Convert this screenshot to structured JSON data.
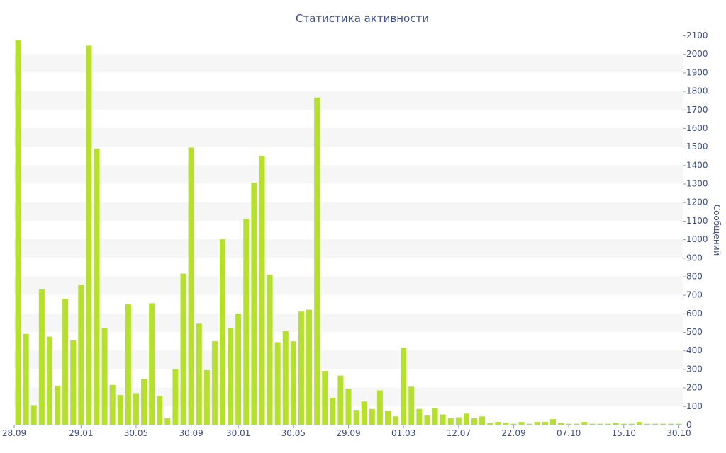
{
  "chart_data": {
    "type": "bar",
    "title": "Статистика активности",
    "xlabel": "",
    "ylabel": "Сообщений",
    "ylim": [
      0,
      2100
    ],
    "y_ticks": [
      0,
      100,
      200,
      300,
      400,
      500,
      600,
      700,
      800,
      900,
      1000,
      1100,
      1200,
      1300,
      1400,
      1500,
      1600,
      1700,
      1800,
      1900,
      2000,
      2100
    ],
    "x_tick_labels": [
      {
        "label": "28.09",
        "index": 0
      },
      {
        "label": "29.01",
        "index": 8
      },
      {
        "label": "30.05",
        "index": 15
      },
      {
        "label": "30.09",
        "index": 22
      },
      {
        "label": "30.01",
        "index": 28
      },
      {
        "label": "30.05",
        "index": 35
      },
      {
        "label": "29.09",
        "index": 42
      },
      {
        "label": "01.03",
        "index": 49
      },
      {
        "label": "12.07",
        "index": 56
      },
      {
        "label": "22.09",
        "index": 63
      },
      {
        "label": "07.10",
        "index": 70
      },
      {
        "label": "15.10",
        "index": 77
      },
      {
        "label": "30.10",
        "index": 84
      }
    ],
    "grid": true,
    "legend": "none",
    "bar_color": "#b5e02b",
    "values": [
      2075,
      490,
      105,
      730,
      475,
      210,
      680,
      455,
      755,
      2045,
      1490,
      520,
      215,
      160,
      650,
      170,
      245,
      655,
      155,
      35,
      300,
      815,
      1495,
      545,
      295,
      450,
      1000,
      520,
      600,
      1110,
      1305,
      1450,
      810,
      445,
      505,
      450,
      610,
      620,
      1765,
      290,
      145,
      265,
      195,
      80,
      125,
      85,
      185,
      75,
      45,
      415,
      205,
      85,
      50,
      90,
      55,
      35,
      40,
      60,
      35,
      45,
      10,
      15,
      10,
      5,
      15,
      5,
      15,
      15,
      30,
      10,
      5,
      5,
      15,
      5,
      5,
      5,
      10,
      5,
      5,
      15,
      5,
      5,
      5,
      5,
      5
    ]
  }
}
